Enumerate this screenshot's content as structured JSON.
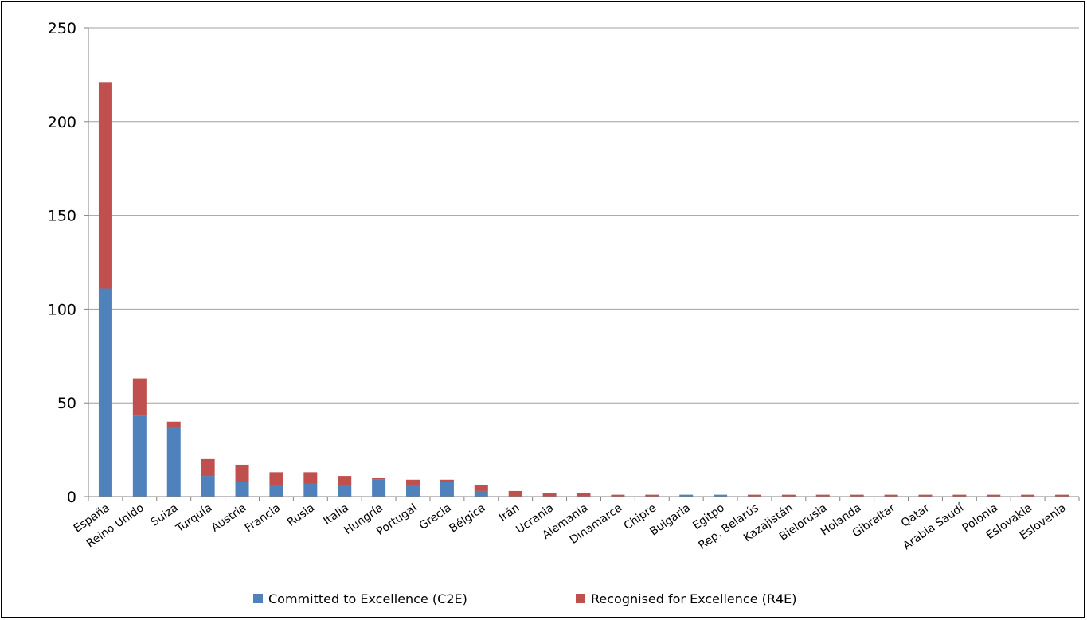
{
  "chart_data": {
    "type": "bar",
    "stacked": true,
    "categories": [
      "España",
      "Reino Unido",
      "Suiza",
      "Turquía",
      "Austria",
      "Francia",
      "Rusia",
      "Italia",
      "Hungría",
      "Portugal",
      "Grecia",
      "Bélgica",
      "Irán",
      "Ucrania",
      "Alemania",
      "Dinamarca",
      "Chipre",
      "Bulgaria",
      "Egitpo",
      "Rep. Belarús",
      "Kazajistán",
      "Bielorusia",
      "Holanda",
      "Gibraltar",
      "Qatar",
      "Arabia Saudí",
      "Polonia",
      "Eslovakia",
      "Eslovenia"
    ],
    "series": [
      {
        "name": "Committed to Excellence (C2E)",
        "color": "#4F81BD",
        "values": [
          111,
          43,
          37,
          11,
          8,
          6,
          7,
          6,
          9,
          6,
          8,
          3,
          0,
          0,
          0,
          0,
          0,
          1,
          1,
          0,
          0,
          0,
          0,
          0,
          0,
          0,
          0,
          0,
          0
        ]
      },
      {
        "name": "Recognised for Excellence (R4E)",
        "color": "#C0504D",
        "values": [
          110,
          20,
          3,
          9,
          9,
          7,
          6,
          5,
          1,
          3,
          1,
          3,
          3,
          2,
          2,
          1,
          1,
          0,
          0,
          1,
          1,
          1,
          1,
          1,
          1,
          1,
          1,
          1,
          1
        ]
      }
    ],
    "ylim": [
      0,
      250
    ],
    "yticks": [
      0,
      50,
      100,
      150,
      200,
      250
    ],
    "grid": true,
    "legend_position": "bottom",
    "colors": {
      "gridline": "#A0A0A0",
      "axis": "#808080"
    }
  }
}
